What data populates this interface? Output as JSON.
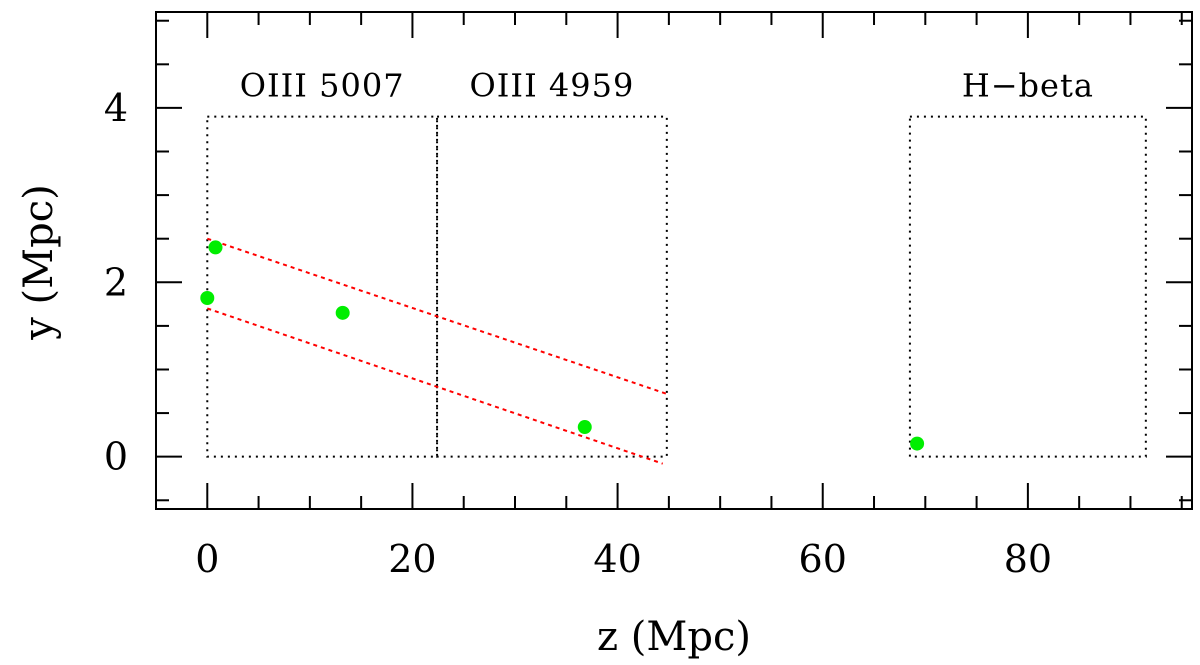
{
  "chart_data": {
    "type": "scatter",
    "xlabel": "z (Mpc)",
    "ylabel": "y (Mpc)",
    "xlim": [
      -5,
      96
    ],
    "ylim": [
      -0.6,
      5.1
    ],
    "x_ticks": [
      0,
      20,
      40,
      60,
      80
    ],
    "y_ticks": [
      0,
      2,
      4
    ],
    "grid": false,
    "points": [
      {
        "x": 0.0,
        "y": 1.82
      },
      {
        "x": 0.8,
        "y": 2.4
      },
      {
        "x": 13.2,
        "y": 1.65
      },
      {
        "x": 36.8,
        "y": 0.34
      },
      {
        "x": 69.2,
        "y": 0.15
      }
    ],
    "regions": [
      {
        "label": "OIII 5007",
        "x": [
          0,
          22.4
        ],
        "y": [
          0,
          3.9
        ]
      },
      {
        "label": "OIII 4959",
        "x": [
          22.4,
          44.8
        ],
        "y": [
          0,
          3.9
        ]
      },
      {
        "label": "H−beta",
        "x": [
          68.5,
          91.5
        ],
        "y": [
          0,
          3.9
        ]
      }
    ],
    "lines": [
      {
        "from": [
          0,
          2.5
        ],
        "to": [
          44.8,
          0.72
        ]
      },
      {
        "from": [
          0,
          1.7
        ],
        "to": [
          44.4,
          -0.08
        ]
      }
    ],
    "colors": {
      "points": "#00ee00",
      "lines": "#ff0000",
      "regions": "#000000",
      "axes": "#000000"
    }
  }
}
